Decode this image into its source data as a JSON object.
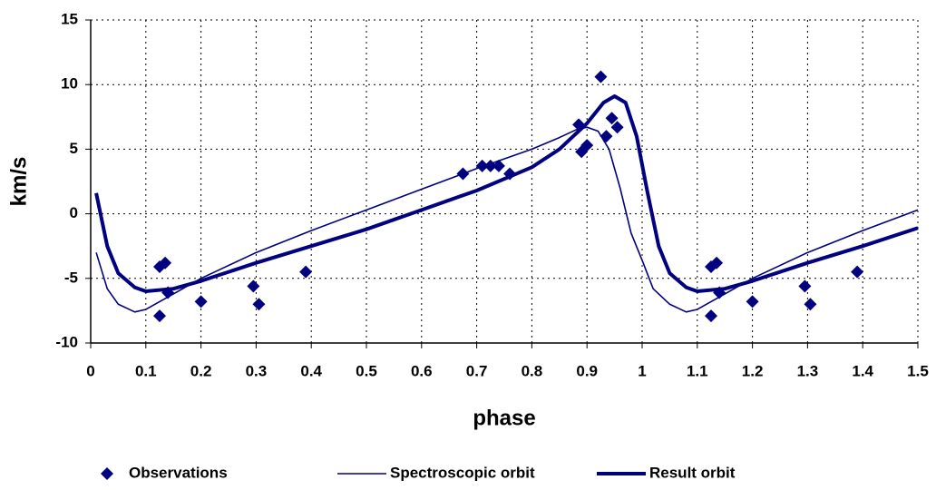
{
  "chart_data": {
    "type": "scatter-line",
    "x_label": "phase",
    "y_label": "km/s",
    "xlim": [
      0,
      1.5
    ],
    "xticks": [
      0,
      0.1,
      0.2,
      0.3,
      0.4,
      0.5,
      0.6,
      0.7,
      0.8,
      0.9,
      1,
      1.1,
      1.2,
      1.3,
      1.4,
      1.5
    ],
    "ylim": [
      -10,
      15
    ],
    "yticks": [
      -10,
      -5,
      0,
      5,
      10,
      15
    ],
    "grid": true,
    "legend": "bottom",
    "series": [
      {
        "name": "Observations",
        "color": "#000080",
        "style": "markers",
        "x": [
          0.125,
          0.125,
          0.135,
          0.14,
          0.2,
          0.295,
          0.305,
          0.39,
          0.675,
          0.71,
          0.725,
          0.74,
          0.76,
          0.885,
          0.89,
          0.9,
          0.925,
          0.935,
          0.945,
          0.955,
          1.125,
          1.125,
          1.135,
          1.14,
          1.2,
          1.295,
          1.305,
          1.39
        ],
        "values": [
          -7.9,
          -4.1,
          -3.8,
          -6.1,
          -6.8,
          -5.6,
          -7.0,
          -4.5,
          3.1,
          3.7,
          3.7,
          3.7,
          3.1,
          6.9,
          4.8,
          5.3,
          10.6,
          6.0,
          7.4,
          6.7,
          -7.9,
          -4.1,
          -3.8,
          -6.1,
          -6.8,
          -5.6,
          -7.0,
          -4.5
        ]
      },
      {
        "name": "Spectroscopic orbit",
        "color": "#000080",
        "style": "thin",
        "x": [
          0.01,
          0.03,
          0.05,
          0.08,
          0.1,
          0.15,
          0.2,
          0.3,
          0.4,
          0.5,
          0.6,
          0.7,
          0.8,
          0.85,
          0.88,
          0.9,
          0.92,
          0.94,
          0.96,
          0.98,
          1.0,
          1.02,
          1.05,
          1.08,
          1.1,
          1.15,
          1.2,
          1.3,
          1.4,
          1.5
        ],
        "values": [
          -3.0,
          -5.8,
          -7.0,
          -7.6,
          -7.4,
          -6.2,
          -5.0,
          -3.0,
          -1.3,
          0.3,
          1.9,
          3.5,
          5.0,
          5.9,
          6.5,
          6.7,
          6.4,
          5.0,
          2.0,
          -1.5,
          -3.6,
          -5.8,
          -7.0,
          -7.6,
          -7.4,
          -6.2,
          -5.0,
          -3.0,
          -1.3,
          0.3
        ]
      },
      {
        "name": "Result orbit",
        "color": "#000080",
        "style": "thick",
        "x": [
          0.01,
          0.03,
          0.05,
          0.08,
          0.1,
          0.15,
          0.2,
          0.3,
          0.4,
          0.5,
          0.6,
          0.7,
          0.8,
          0.85,
          0.9,
          0.93,
          0.95,
          0.97,
          0.99,
          1.01,
          1.03,
          1.05,
          1.08,
          1.1,
          1.15,
          1.2,
          1.3,
          1.4,
          1.5
        ],
        "values": [
          1.6,
          -2.5,
          -4.6,
          -5.7,
          -6.0,
          -5.8,
          -5.2,
          -3.8,
          -2.5,
          -1.2,
          0.3,
          1.8,
          3.6,
          5.0,
          7.0,
          8.6,
          9.1,
          8.6,
          6.0,
          1.6,
          -2.5,
          -4.6,
          -5.7,
          -6.0,
          -5.8,
          -5.2,
          -3.8,
          -2.5,
          -1.1
        ]
      }
    ]
  }
}
